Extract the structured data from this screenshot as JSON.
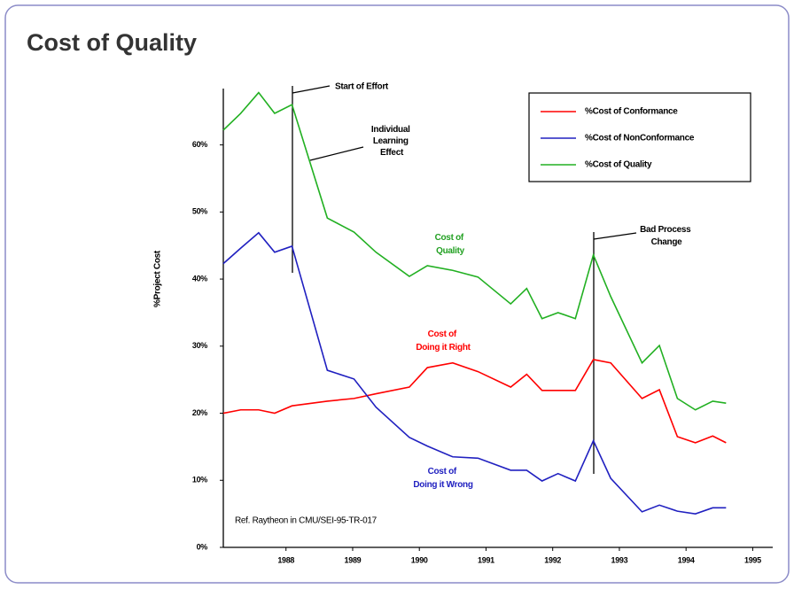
{
  "chart_data": {
    "type": "line",
    "title": "Cost of Quality",
    "y_label": "%Project Cost",
    "x": [
      1987.06,
      1987.32,
      1987.59,
      1987.83,
      1988.09,
      1988.62,
      1989.02,
      1989.35,
      1989.85,
      1990.12,
      1990.5,
      1990.88,
      1991.37,
      1991.61,
      1991.84,
      1992.08,
      1992.34,
      1992.61,
      1992.87,
      1993.34,
      1993.6,
      1993.87,
      1994.14,
      1994.4,
      1994.6
    ],
    "series": [
      {
        "name": "%Cost of Conformance",
        "color": "#ff0000",
        "values": [
          20,
          20.5,
          20.5,
          20,
          21.1,
          21.8,
          22.2,
          22.9,
          23.9,
          26.8,
          27.5,
          26.2,
          23.9,
          25.8,
          23.4,
          23.4,
          23.4,
          28,
          27.5,
          22.2,
          23.5,
          16.5,
          15.6,
          16.6,
          15.6
        ]
      },
      {
        "name": "%Cost of NonConformance",
        "color": "#2020c0",
        "values": [
          42.3,
          44.6,
          46.9,
          44,
          44.9,
          26.4,
          25.1,
          20.9,
          16.4,
          15.1,
          13.5,
          13.3,
          11.5,
          11.5,
          9.9,
          11,
          9.9,
          15.9,
          10.3,
          5.3,
          6.3,
          5.4,
          5,
          5.9,
          5.9
        ]
      },
      {
        "name": "%Cost of Quality",
        "color": "#22b022",
        "values": [
          62.2,
          64.7,
          67.8,
          64.7,
          66,
          49.1,
          47,
          44,
          40.4,
          42,
          41.3,
          40.3,
          36.3,
          38.6,
          34.1,
          35,
          34.1,
          43.6,
          37.4,
          27.5,
          30.1,
          22.2,
          20.5,
          21.8,
          21.5
        ]
      }
    ],
    "xlim": [
      1987.06,
      1995.3
    ],
    "xticks": [
      1988,
      1989,
      1990,
      1991,
      1992,
      1993,
      1994,
      1995
    ],
    "ylim": [
      0,
      68.4
    ],
    "yticks": [
      {
        "value": 0,
        "label": "0%"
      },
      {
        "value": 10,
        "label": "10%"
      },
      {
        "value": 20,
        "label": "20%"
      },
      {
        "value": 30,
        "label": "30%"
      },
      {
        "value": 40,
        "label": "40%"
      },
      {
        "value": 50,
        "label": "50%"
      },
      {
        "value": 60,
        "label": "60%"
      }
    ],
    "legend": "upper right",
    "annotations": [
      {
        "lines": [
          "Start of Effort"
        ]
      },
      {
        "lines": [
          "Individual",
          "Learning",
          "Effect"
        ]
      },
      {
        "lines": [
          "Bad Process",
          "Change"
        ]
      },
      {
        "lines": [
          "Cost of",
          "Quality"
        ]
      },
      {
        "lines": [
          "Cost of",
          "Doing it Right"
        ]
      },
      {
        "lines": [
          "Cost of",
          "Doing it Wrong"
        ]
      },
      {
        "lines": [
          "Ref. Raytheon in CMU/SEI-95-TR-017"
        ]
      }
    ]
  }
}
